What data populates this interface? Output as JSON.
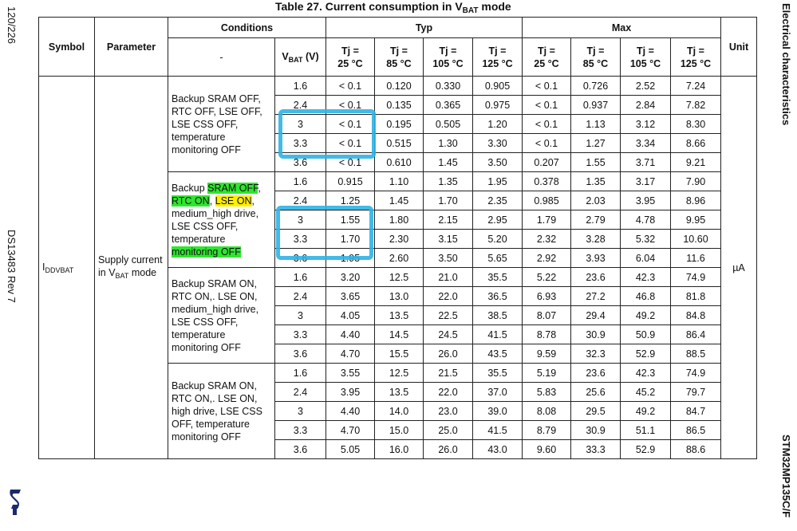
{
  "page": {
    "page_number": "120/226",
    "doc_ref": "DS13483 Rev 7",
    "section": "Electrical characteristics",
    "product": "STM32MP135C/F",
    "logo_name": "st-logo"
  },
  "table": {
    "title_main": "Table 27. Current consumption in V",
    "title_sub": "BAT",
    "title_tail": " mode",
    "headers": {
      "symbol": "Symbol",
      "parameter": "Parameter",
      "conditions": "Conditions",
      "typ": "Typ",
      "max": "Max",
      "unit": "Unit",
      "dash": "-",
      "vbat_main": "V",
      "vbat_sub": "BAT",
      "vbat_tail": " (V)",
      "tj": [
        "Tj =\n25 °C",
        "Tj =\n85 °C",
        "Tj =\n105 °C",
        "Tj =\n125 °C",
        "Tj =\n25 °C",
        "Tj =\n85 °C",
        "Tj =\n105 °C",
        "Tj =\n125 °C"
      ]
    },
    "symbol_main": "I",
    "symbol_sub": "DDVBAT",
    "parameter_main": "Supply current in V",
    "parameter_sub": "BAT",
    "parameter_tail": " mode",
    "unit": "µA",
    "groups": [
      {
        "condition_parts": [
          {
            "text": "Backup SRAM OFF, RTC OFF, LSE OFF, LSE CSS OFF, temperature monitoring OFF",
            "hl": ""
          }
        ],
        "rows": [
          [
            "1.6",
            "< 0.1",
            "0.120",
            "0.330",
            "0.905",
            "< 0.1",
            "0.726",
            "2.52",
            "7.24"
          ],
          [
            "2.4",
            "< 0.1",
            "0.135",
            "0.365",
            "0.975",
            "< 0.1",
            "0.937",
            "2.84",
            "7.82"
          ],
          [
            "3",
            "< 0.1",
            "0.195",
            "0.505",
            "1.20",
            "< 0.1",
            "1.13",
            "3.12",
            "8.30"
          ],
          [
            "3.3",
            "< 0.1",
            "0.515",
            "1.30",
            "3.30",
            "< 0.1",
            "1.27",
            "3.34",
            "8.66"
          ],
          [
            "3.6",
            "< 0.1",
            "0.610",
            "1.45",
            "3.50",
            "0.207",
            "1.55",
            "3.71",
            "9.21"
          ]
        ]
      },
      {
        "condition_parts": [
          {
            "text": "Backup ",
            "hl": ""
          },
          {
            "text": "SRAM OFF",
            "hl": "green"
          },
          {
            "text": ", ",
            "hl": ""
          },
          {
            "text": "RTC ON",
            "hl": "green"
          },
          {
            "text": ", ",
            "hl": ""
          },
          {
            "text": "LSE ON",
            "hl": "yellow"
          },
          {
            "text": ", medium_high drive, LSE CSS OFF, temperature ",
            "hl": ""
          },
          {
            "text": "monitoring OFF",
            "hl": "green"
          }
        ],
        "rows": [
          [
            "1.6",
            "0.915",
            "1.10",
            "1.35",
            "1.95",
            "0.378",
            "1.35",
            "3.17",
            "7.90"
          ],
          [
            "2.4",
            "1.25",
            "1.45",
            "1.70",
            "2.35",
            "0.985",
            "2.03",
            "3.95",
            "8.96"
          ],
          [
            "3",
            "1.55",
            "1.80",
            "2.15",
            "2.95",
            "1.79",
            "2.79",
            "4.78",
            "9.95"
          ],
          [
            "3.3",
            "1.70",
            "2.30",
            "3.15",
            "5.20",
            "2.32",
            "3.28",
            "5.32",
            "10.60"
          ],
          [
            "3.6",
            "1.95",
            "2.60",
            "3.50",
            "5.65",
            "2.92",
            "3.93",
            "6.04",
            "11.6"
          ]
        ]
      },
      {
        "condition_parts": [
          {
            "text": "Backup SRAM ON, RTC ON,. LSE ON, medium_high drive, LSE CSS OFF, temperature monitoring OFF",
            "hl": ""
          }
        ],
        "rows": [
          [
            "1.6",
            "3.20",
            "12.5",
            "21.0",
            "35.5",
            "5.22",
            "23.6",
            "42.3",
            "74.9"
          ],
          [
            "2.4",
            "3.65",
            "13.0",
            "22.0",
            "36.5",
            "6.93",
            "27.2",
            "46.8",
            "81.8"
          ],
          [
            "3",
            "4.05",
            "13.5",
            "22.5",
            "38.5",
            "8.07",
            "29.4",
            "49.2",
            "84.8"
          ],
          [
            "3.3",
            "4.40",
            "14.5",
            "24.5",
            "41.5",
            "8.78",
            "30.9",
            "50.9",
            "86.4"
          ],
          [
            "3.6",
            "4.70",
            "15.5",
            "26.0",
            "43.5",
            "9.59",
            "32.3",
            "52.9",
            "88.5"
          ]
        ]
      },
      {
        "condition_parts": [
          {
            "text": "Backup SRAM ON, RTC ON,. LSE ON, high drive, LSE CSS OFF, temperature monitoring OFF",
            "hl": ""
          }
        ],
        "rows": [
          [
            "1.6",
            "3.55",
            "12.5",
            "21.5",
            "35.5",
            "5.19",
            "23.6",
            "42.3",
            "74.9"
          ],
          [
            "2.4",
            "3.95",
            "13.5",
            "22.0",
            "37.0",
            "5.83",
            "25.6",
            "45.2",
            "79.7"
          ],
          [
            "3",
            "4.40",
            "14.0",
            "23.0",
            "39.0",
            "8.08",
            "29.5",
            "49.2",
            "84.7"
          ],
          [
            "3.3",
            "4.70",
            "15.0",
            "25.0",
            "41.5",
            "8.79",
            "30.9",
            "51.1",
            "86.5"
          ],
          [
            "3.6",
            "5.05",
            "16.0",
            "26.0",
            "43.0",
            "9.60",
            "33.3",
            "52.9",
            "88.6"
          ]
        ]
      }
    ]
  },
  "annotations": {
    "pen_color": "#2fb3e6",
    "highlight_green": "#2ee62e",
    "highlight_yellow": "#ffee00"
  }
}
